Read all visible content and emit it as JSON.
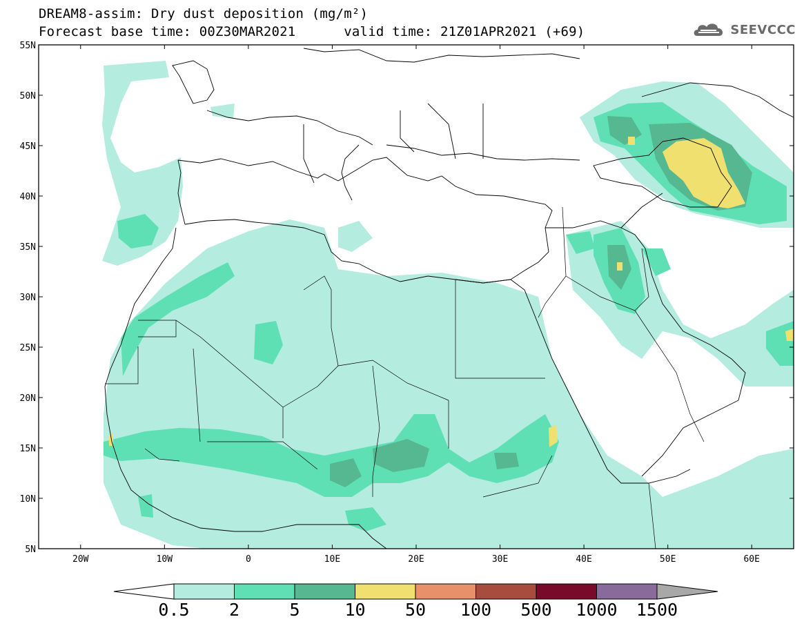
{
  "header": {
    "title_line1": "DREAM8-assim: Dry dust deposition (mg/m²)",
    "title_line2": "Forecast base time: 00Z30MAR2021      valid time: 21Z01APR2021 (+69)",
    "logo_text": "SEEVCCC"
  },
  "map": {
    "lon_range": [
      -25,
      65
    ],
    "lat_range": [
      5,
      55
    ],
    "lon_ticks": [
      {
        "value": -20,
        "label": "20W"
      },
      {
        "value": -10,
        "label": "10W"
      },
      {
        "value": 0,
        "label": "0"
      },
      {
        "value": 10,
        "label": "10E"
      },
      {
        "value": 20,
        "label": "20E"
      },
      {
        "value": 30,
        "label": "30E"
      },
      {
        "value": 40,
        "label": "40E"
      },
      {
        "value": 50,
        "label": "50E"
      },
      {
        "value": 60,
        "label": "60E"
      }
    ],
    "lat_ticks": [
      {
        "value": 55,
        "label": "55N"
      },
      {
        "value": 50,
        "label": "50N"
      },
      {
        "value": 45,
        "label": "45N"
      },
      {
        "value": 40,
        "label": "40N"
      },
      {
        "value": 35,
        "label": "35N"
      },
      {
        "value": 30,
        "label": "30N"
      },
      {
        "value": 25,
        "label": "25N"
      },
      {
        "value": 20,
        "label": "20N"
      },
      {
        "value": 15,
        "label": "15N"
      },
      {
        "value": 10,
        "label": "10N"
      },
      {
        "value": 5,
        "label": "5N"
      }
    ]
  },
  "colorbar": {
    "colors": [
      "#b4ece0",
      "#5fe0b4",
      "#55b890",
      "#f0e070",
      "#e8906a",
      "#a84c40",
      "#7a0a2a",
      "#8a6a9a"
    ],
    "under_color": "#ffffff",
    "over_color": "#a8a8a8",
    "labels": [
      "0.5",
      "2",
      "5",
      "10",
      "50",
      "100",
      "500",
      "1000",
      "1500"
    ]
  },
  "legend_colors": {
    "level1": "#b4ece0",
    "level2": "#5fe0b4",
    "level3": "#55b890",
    "level4": "#f0e070"
  }
}
